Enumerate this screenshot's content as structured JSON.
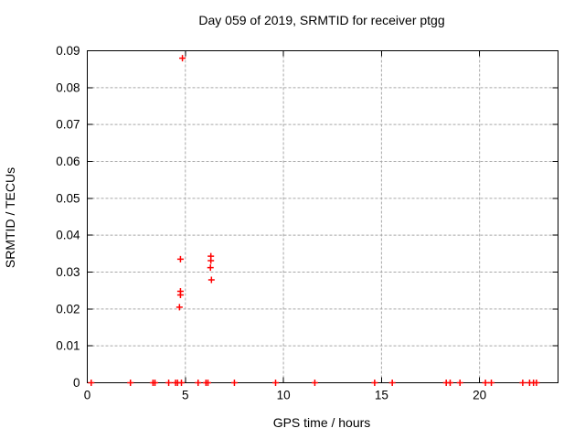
{
  "chart_data": {
    "type": "scatter",
    "title": "Day 059 of 2019, SRMTID for receiver ptgg",
    "xlabel": "GPS time / hours",
    "ylabel": "SRMTID / TECUs",
    "xlim": [
      0,
      24
    ],
    "ylim": [
      0,
      0.09
    ],
    "xticks": [
      0,
      5,
      10,
      15,
      20
    ],
    "xtick_labels": [
      "0",
      "5",
      "10",
      "15",
      "20"
    ],
    "yticks": [
      0,
      0.01,
      0.02,
      0.03,
      0.04,
      0.05,
      0.06,
      0.07,
      0.08,
      0.09
    ],
    "ytick_labels": [
      "0",
      "0.01",
      "0.02",
      "0.03",
      "0.04",
      "0.05",
      "0.06",
      "0.07",
      "0.08",
      "0.09"
    ],
    "grid": true,
    "legend_position": "none",
    "marker_shape": "plus",
    "marker_color": "#ff0000",
    "grid_color": "#a8a8a8",
    "frame_color": "#000000",
    "series": [
      {
        "name": "SRMTID",
        "points": [
          [
            0.2,
            0
          ],
          [
            2.2,
            0
          ],
          [
            3.35,
            0
          ],
          [
            3.45,
            0
          ],
          [
            4.15,
            0
          ],
          [
            4.5,
            0
          ],
          [
            4.6,
            0
          ],
          [
            4.7,
            0.0205
          ],
          [
            4.75,
            0.0238
          ],
          [
            4.75,
            0.0248
          ],
          [
            4.75,
            0.0335
          ],
          [
            4.8,
            0
          ],
          [
            4.85,
            0.088
          ],
          [
            5.65,
            0
          ],
          [
            6.05,
            0
          ],
          [
            6.15,
            0
          ],
          [
            6.28,
            0.0312
          ],
          [
            6.3,
            0.0331
          ],
          [
            6.3,
            0.0343
          ],
          [
            6.33,
            0.0279
          ],
          [
            7.5,
            0
          ],
          [
            9.6,
            0
          ],
          [
            11.6,
            0
          ],
          [
            14.65,
            0
          ],
          [
            15.55,
            0
          ],
          [
            18.3,
            0
          ],
          [
            18.5,
            0
          ],
          [
            19.0,
            0
          ],
          [
            20.3,
            0
          ],
          [
            20.6,
            0
          ],
          [
            22.2,
            0
          ],
          [
            22.55,
            0
          ],
          [
            22.75,
            0
          ],
          [
            22.9,
            0
          ]
        ]
      }
    ]
  }
}
